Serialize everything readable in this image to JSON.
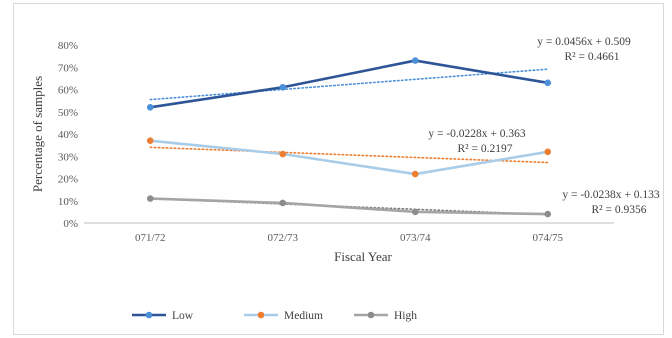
{
  "chart_data": {
    "type": "line",
    "xlabel": "Fiscal Year",
    "ylabel": "Percentage of samples",
    "categories": [
      "071/72",
      "072/73",
      "073/74",
      "074/75"
    ],
    "y_ticks": [
      "0%",
      "10%",
      "20%",
      "30%",
      "40%",
      "50%",
      "60%",
      "70%",
      "80%"
    ],
    "ylim": [
      0,
      0.8
    ],
    "grid": false,
    "legend_position": "bottom",
    "series": [
      {
        "name": "Low",
        "values": [
          0.52,
          0.61,
          0.73,
          0.63
        ],
        "color": "#2e5597",
        "trend_color": "#4a90d9",
        "trendline": {
          "slope": 0.0456,
          "intercept": 0.509
        }
      },
      {
        "name": "Medium",
        "values": [
          0.37,
          0.31,
          0.22,
          0.32
        ],
        "color": "#a9cde8",
        "marker_color": "#ed7d31",
        "trend_color": "#ed7d31",
        "trendline": {
          "slope": -0.0228,
          "intercept": 0.363
        }
      },
      {
        "name": "High",
        "values": [
          0.11,
          0.09,
          0.05,
          0.04
        ],
        "color": "#a5a5a5",
        "marker_color": "#8c8c8c",
        "trend_color": "#7f7f7f",
        "trendline": {
          "slope": -0.0238,
          "intercept": 0.133
        }
      }
    ],
    "annotations": [
      {
        "series": "Low",
        "equation": "y = 0.0456x + 0.509",
        "r2": "R² = 0.4661"
      },
      {
        "series": "Medium",
        "equation": "y = -0.0228x + 0.363",
        "r2": "R² = 0.2197"
      },
      {
        "series": "High",
        "equation": "y = -0.0238x + 0.133",
        "r2": "R² = 0.9356"
      }
    ]
  }
}
